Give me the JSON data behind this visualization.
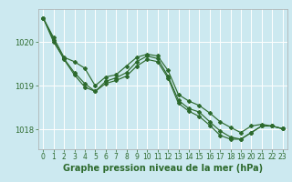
{
  "background_color": "#cce9f0",
  "grid_color": "#ffffff",
  "line_color": "#2d6a2d",
  "xlabel": "Graphe pression niveau de la mer (hPa)",
  "xlabel_fontsize": 7,
  "tick_fontsize": 5.5,
  "ytick_fontsize": 6,
  "ylim": [
    1017.55,
    1020.75
  ],
  "yticks": [
    1018,
    1019,
    1020
  ],
  "xticks": [
    0,
    1,
    2,
    3,
    4,
    5,
    6,
    7,
    8,
    9,
    10,
    11,
    12,
    13,
    14,
    15,
    16,
    17,
    18,
    19,
    20,
    21,
    22,
    23
  ],
  "series1": [
    1020.55,
    1020.1,
    1019.65,
    1019.55,
    1019.4,
    1019.0,
    1019.2,
    1019.25,
    1019.45,
    1019.65,
    1019.72,
    1019.68,
    1019.35,
    1018.8,
    1018.65,
    1018.55,
    1018.38,
    1018.18,
    1018.05,
    1017.93,
    1018.08,
    1018.12,
    1018.08,
    1018.02
  ],
  "series2": [
    1020.55,
    1020.0,
    1019.62,
    1019.3,
    1019.05,
    1018.87,
    1019.1,
    1019.18,
    1019.3,
    1019.55,
    1019.68,
    1019.62,
    1019.22,
    1018.67,
    1018.48,
    1018.4,
    1018.18,
    1017.97,
    1017.83,
    1017.78,
    1017.93,
    1018.08,
    1018.08,
    1018.02
  ],
  "series3": [
    1020.55,
    1020.05,
    1019.6,
    1019.25,
    1018.97,
    1018.87,
    1019.05,
    1019.12,
    1019.22,
    1019.45,
    1019.6,
    1019.55,
    1019.18,
    1018.6,
    1018.42,
    1018.3,
    1018.1,
    1017.87,
    1017.78,
    1017.78,
    1017.93,
    1018.08,
    1018.08,
    1018.02
  ]
}
